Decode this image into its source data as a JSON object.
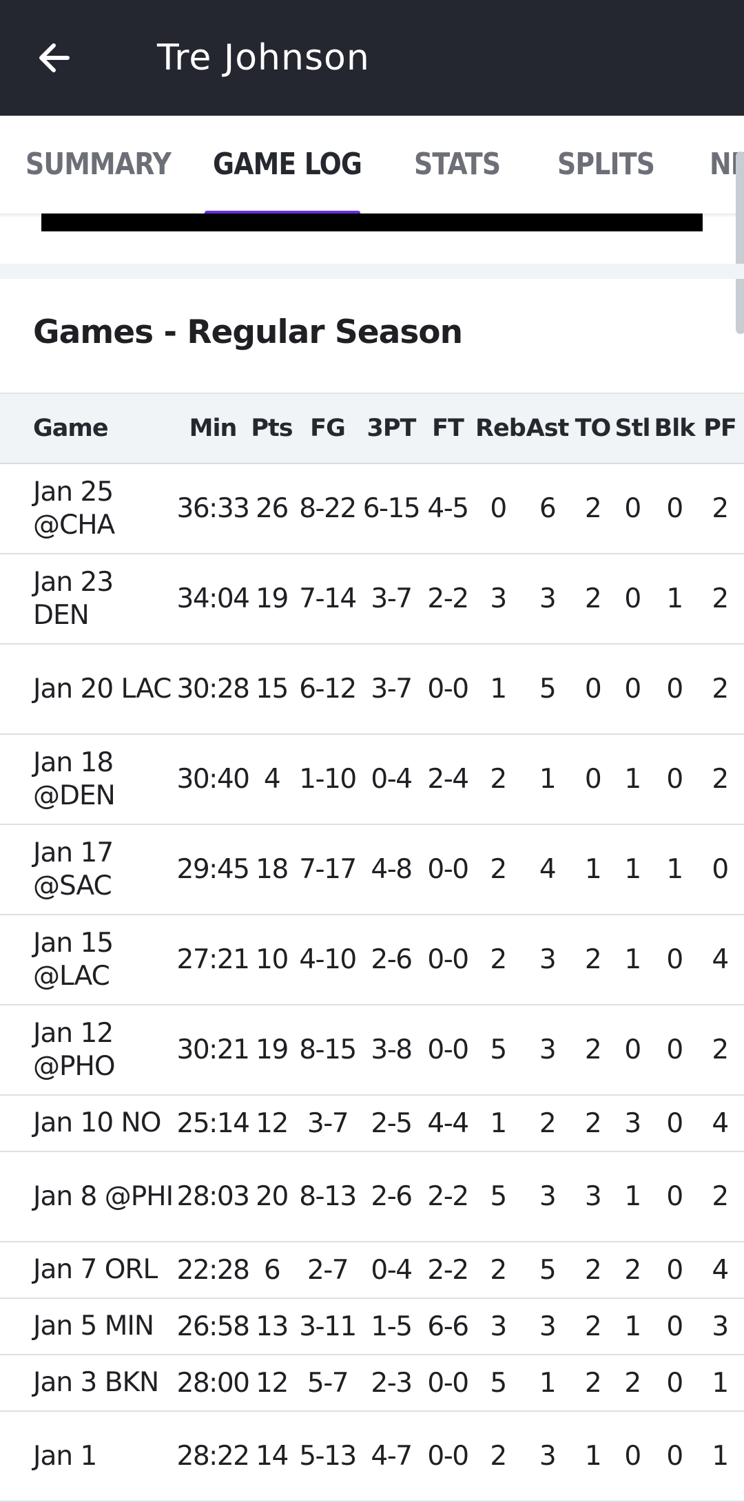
{
  "appbar": {
    "title": "Tre Johnson",
    "back_icon": "arrow-left-icon"
  },
  "tabs": [
    {
      "label": "SUMMARY",
      "active": false
    },
    {
      "label": "GAME LOG",
      "active": true
    },
    {
      "label": "STATS",
      "active": false
    },
    {
      "label": "SPLITS",
      "active": false
    },
    {
      "label": "NE",
      "active": false
    }
  ],
  "colors": {
    "appbar_bg": "#24272f",
    "tab_indicator": "#6a2ee6",
    "header_bg": "#f1f4f7"
  },
  "section_title": "Games - Regular Season",
  "table": {
    "columns": [
      "Game",
      "Min",
      "Pts",
      "FG",
      "3PT",
      "FT",
      "Reb",
      "Ast",
      "TO",
      "Stl",
      "Blk",
      "PF"
    ],
    "rows": [
      {
        "game": "Jan 25 @CHA",
        "min": "36:33",
        "pts": "26",
        "fg": "8-22",
        "tpt": "6-15",
        "ft": "4-5",
        "reb": "0",
        "ast": "6",
        "to": "2",
        "stl": "0",
        "blk": "0",
        "pf": "2"
      },
      {
        "game": "Jan 23 DEN",
        "min": "34:04",
        "pts": "19",
        "fg": "7-14",
        "tpt": "3-7",
        "ft": "2-2",
        "reb": "3",
        "ast": "3",
        "to": "2",
        "stl": "0",
        "blk": "1",
        "pf": "2"
      },
      {
        "game": "Jan 20 LAC",
        "min": "30:28",
        "pts": "15",
        "fg": "6-12",
        "tpt": "3-7",
        "ft": "0-0",
        "reb": "1",
        "ast": "5",
        "to": "0",
        "stl": "0",
        "blk": "0",
        "pf": "2"
      },
      {
        "game": "Jan 18 @DEN",
        "min": "30:40",
        "pts": "4",
        "fg": "1-10",
        "tpt": "0-4",
        "ft": "2-4",
        "reb": "2",
        "ast": "1",
        "to": "0",
        "stl": "1",
        "blk": "0",
        "pf": "2"
      },
      {
        "game": "Jan 17 @SAC",
        "min": "29:45",
        "pts": "18",
        "fg": "7-17",
        "tpt": "4-8",
        "ft": "0-0",
        "reb": "2",
        "ast": "4",
        "to": "1",
        "stl": "1",
        "blk": "1",
        "pf": "0"
      },
      {
        "game": "Jan 15 @LAC",
        "min": "27:21",
        "pts": "10",
        "fg": "4-10",
        "tpt": "2-6",
        "ft": "0-0",
        "reb": "2",
        "ast": "3",
        "to": "2",
        "stl": "1",
        "blk": "0",
        "pf": "4"
      },
      {
        "game": "Jan 12 @PHO",
        "min": "30:21",
        "pts": "19",
        "fg": "8-15",
        "tpt": "3-8",
        "ft": "0-0",
        "reb": "5",
        "ast": "3",
        "to": "2",
        "stl": "0",
        "blk": "0",
        "pf": "2"
      },
      {
        "game": "Jan 10 NO",
        "min": "25:14",
        "pts": "12",
        "fg": "3-7",
        "tpt": "2-5",
        "ft": "4-4",
        "reb": "1",
        "ast": "2",
        "to": "2",
        "stl": "3",
        "blk": "0",
        "pf": "4"
      },
      {
        "game": "Jan 8 @PHI",
        "min": "28:03",
        "pts": "20",
        "fg": "8-13",
        "tpt": "2-6",
        "ft": "2-2",
        "reb": "5",
        "ast": "3",
        "to": "3",
        "stl": "1",
        "blk": "0",
        "pf": "2"
      },
      {
        "game": "Jan 7 ORL",
        "min": "22:28",
        "pts": "6",
        "fg": "2-7",
        "tpt": "0-4",
        "ft": "2-2",
        "reb": "2",
        "ast": "5",
        "to": "2",
        "stl": "2",
        "blk": "0",
        "pf": "4"
      },
      {
        "game": "Jan 5 MIN",
        "min": "26:58",
        "pts": "13",
        "fg": "3-11",
        "tpt": "1-5",
        "ft": "6-6",
        "reb": "3",
        "ast": "3",
        "to": "2",
        "stl": "1",
        "blk": "0",
        "pf": "3"
      },
      {
        "game": "Jan 3 BKN",
        "min": "28:00",
        "pts": "12",
        "fg": "5-7",
        "tpt": "2-3",
        "ft": "0-0",
        "reb": "5",
        "ast": "1",
        "to": "2",
        "stl": "2",
        "blk": "0",
        "pf": "1"
      },
      {
        "game": "Jan 1",
        "min": "28:22",
        "pts": "14",
        "fg": "5-13",
        "tpt": "4-7",
        "ft": "0-0",
        "reb": "2",
        "ast": "3",
        "to": "1",
        "stl": "0",
        "blk": "0",
        "pf": "1"
      }
    ]
  }
}
